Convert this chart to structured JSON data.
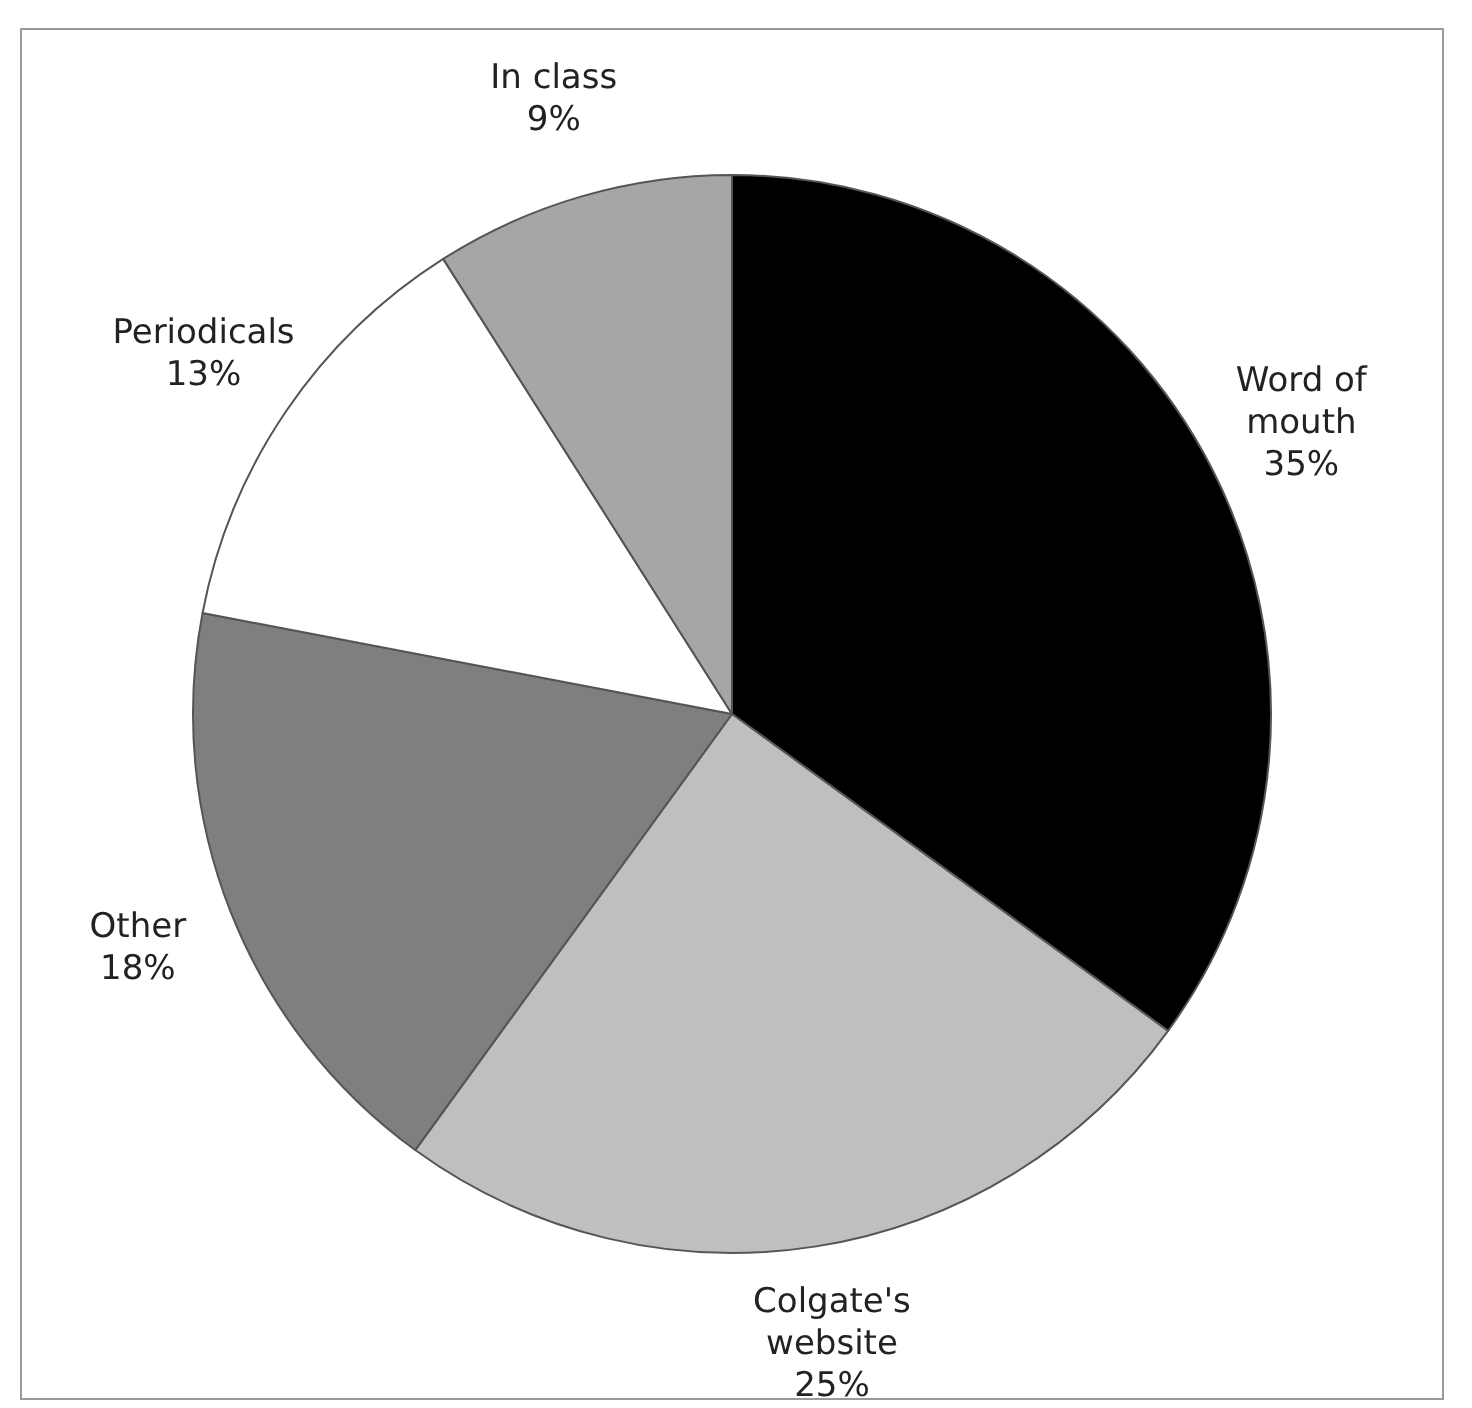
{
  "chart_data": {
    "type": "pie",
    "categories": [
      "Word of mouth",
      "Colgate's website",
      "Other",
      "Periodicals",
      "In class"
    ],
    "values": [
      35,
      25,
      18,
      13,
      9
    ],
    "value_labels": [
      "35%",
      "25%",
      "18%",
      "13%",
      "9%"
    ],
    "colors": [
      "#000000",
      "#bfbfbf",
      "#7f7f7f",
      "#ffffff",
      "#a6a6a6"
    ],
    "legend": false
  }
}
